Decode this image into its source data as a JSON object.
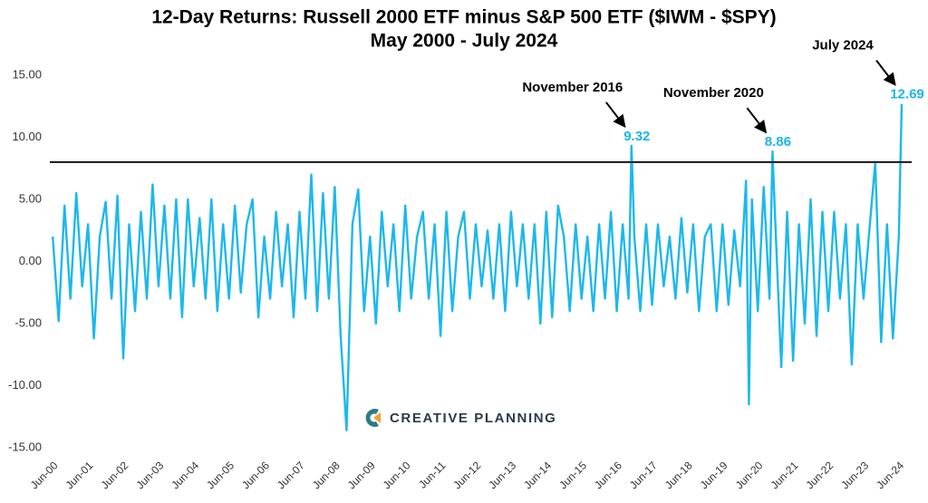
{
  "chart_data": {
    "type": "line",
    "title": "12-Day Returns: Russell 2000 ETF minus S&P 500 ETF ($IWM - $SPY)",
    "subtitle": "May 2000 - July 2024",
    "watermark": "CREATIVE PLANNING",
    "color": "#1cb8ec",
    "reference_line": 8,
    "xlim": [
      "2000-05",
      "2024-07"
    ],
    "ylim": [
      -15,
      15
    ],
    "yticks": [
      {
        "value": 15,
        "label": "15.00"
      },
      {
        "value": 10,
        "label": "10.00"
      },
      {
        "value": 5,
        "label": "5.00"
      },
      {
        "value": 0,
        "label": "0.00"
      },
      {
        "value": -5,
        "label": "-5.00"
      },
      {
        "value": -10,
        "label": "-10.00"
      },
      {
        "value": -15,
        "label": "-15.00"
      }
    ],
    "xticks": [
      {
        "value": "2000-06",
        "label": "Jun-00"
      },
      {
        "value": "2001-06",
        "label": "Jun-01"
      },
      {
        "value": "2002-06",
        "label": "Jun-02"
      },
      {
        "value": "2003-06",
        "label": "Jun-03"
      },
      {
        "value": "2004-06",
        "label": "Jun-04"
      },
      {
        "value": "2005-06",
        "label": "Jun-05"
      },
      {
        "value": "2006-06",
        "label": "Jun-06"
      },
      {
        "value": "2007-06",
        "label": "Jun-07"
      },
      {
        "value": "2008-06",
        "label": "Jun-08"
      },
      {
        "value": "2009-06",
        "label": "Jun-09"
      },
      {
        "value": "2010-06",
        "label": "Jun-10"
      },
      {
        "value": "2011-06",
        "label": "Jun-11"
      },
      {
        "value": "2012-06",
        "label": "Jun-12"
      },
      {
        "value": "2013-06",
        "label": "Jun-13"
      },
      {
        "value": "2014-06",
        "label": "Jun-14"
      },
      {
        "value": "2015-06",
        "label": "Jun-15"
      },
      {
        "value": "2016-06",
        "label": "Jun-16"
      },
      {
        "value": "2017-06",
        "label": "Jun-17"
      },
      {
        "value": "2018-06",
        "label": "Jun-18"
      },
      {
        "value": "2019-06",
        "label": "Jun-19"
      },
      {
        "value": "2020-06",
        "label": "Jun-20"
      },
      {
        "value": "2021-06",
        "label": "Jun-21"
      },
      {
        "value": "2022-06",
        "label": "Jun-22"
      },
      {
        "value": "2023-06",
        "label": "Jun-23"
      },
      {
        "value": "2024-06",
        "label": "Jun-24"
      }
    ],
    "x": [
      "2000-06",
      "2000-08",
      "2000-10",
      "2000-12",
      "2001-02",
      "2001-04",
      "2001-06",
      "2001-08",
      "2001-10",
      "2001-12",
      "2002-02",
      "2002-04",
      "2002-06",
      "2002-08",
      "2002-10",
      "2002-12",
      "2003-02",
      "2003-04",
      "2003-06",
      "2003-08",
      "2003-10",
      "2003-12",
      "2004-02",
      "2004-04",
      "2004-06",
      "2004-08",
      "2004-10",
      "2004-12",
      "2005-02",
      "2005-04",
      "2005-06",
      "2005-08",
      "2005-10",
      "2005-12",
      "2006-02",
      "2006-04",
      "2006-06",
      "2006-08",
      "2006-10",
      "2006-12",
      "2007-02",
      "2007-04",
      "2007-06",
      "2007-08",
      "2007-10",
      "2007-12",
      "2008-02",
      "2008-04",
      "2008-06",
      "2008-08",
      "2008-10",
      "2008-12",
      "2009-02",
      "2009-04",
      "2009-06",
      "2009-08",
      "2009-10",
      "2009-12",
      "2010-02",
      "2010-04",
      "2010-06",
      "2010-08",
      "2010-10",
      "2010-12",
      "2011-02",
      "2011-04",
      "2011-06",
      "2011-08",
      "2011-10",
      "2011-12",
      "2012-02",
      "2012-04",
      "2012-06",
      "2012-08",
      "2012-10",
      "2012-12",
      "2013-02",
      "2013-04",
      "2013-06",
      "2013-08",
      "2013-10",
      "2013-12",
      "2014-02",
      "2014-04",
      "2014-06",
      "2014-08",
      "2014-10",
      "2014-12",
      "2015-02",
      "2015-04",
      "2015-06",
      "2015-08",
      "2015-10",
      "2015-12",
      "2016-02",
      "2016-04",
      "2016-06",
      "2016-08",
      "2016-10",
      "2016-11",
      "2016-12",
      "2017-02",
      "2017-04",
      "2017-06",
      "2017-08",
      "2017-10",
      "2017-12",
      "2018-02",
      "2018-04",
      "2018-06",
      "2018-08",
      "2018-10",
      "2018-12",
      "2019-02",
      "2019-04",
      "2019-06",
      "2019-08",
      "2019-10",
      "2019-12",
      "2020-02",
      "2020-03",
      "2020-04",
      "2020-06",
      "2020-08",
      "2020-10",
      "2020-11",
      "2020-12",
      "2021-02",
      "2021-04",
      "2021-06",
      "2021-08",
      "2021-10",
      "2021-12",
      "2022-02",
      "2022-04",
      "2022-06",
      "2022-08",
      "2022-10",
      "2022-12",
      "2023-02",
      "2023-04",
      "2023-06",
      "2023-08",
      "2023-10",
      "2023-12",
      "2024-02",
      "2024-04",
      "2024-06",
      "2024-07"
    ],
    "values": [
      2,
      -4.8,
      4.5,
      -3,
      5.5,
      -2,
      3,
      -6.2,
      2,
      4.8,
      -3,
      5.3,
      -7.8,
      3,
      -4,
      4,
      -3,
      6.2,
      -2,
      4.5,
      -3,
      5,
      -4.5,
      5,
      -2,
      3.5,
      -3,
      5,
      -4,
      3,
      -3,
      4.5,
      -2.5,
      3,
      5,
      -4.5,
      2,
      -3,
      4,
      -2,
      3,
      -4.5,
      4,
      -3,
      7,
      -4,
      5.5,
      -3,
      6,
      -6,
      -13.6,
      3,
      5.8,
      -4,
      2,
      -5,
      4,
      -2,
      3,
      -4,
      4.5,
      -3,
      2,
      4,
      -3,
      3,
      -6,
      4,
      -4,
      2,
      4,
      -3,
      3,
      -2,
      2.5,
      -3,
      3,
      -4,
      4,
      -2,
      3,
      -3,
      3,
      -5,
      4,
      -4.5,
      4.5,
      2,
      -4,
      3,
      -3,
      2,
      -4,
      3,
      -3,
      4,
      -4,
      3,
      -3,
      9.32,
      2,
      -4,
      3,
      -3.5,
      3,
      -2,
      2,
      -3,
      3.5,
      -2.5,
      3,
      -4,
      2,
      3,
      -4,
      3,
      -3.5,
      2.5,
      -2,
      6.5,
      -11.5,
      5,
      -4,
      6,
      -3,
      8.86,
      3,
      -8.5,
      4,
      -8,
      3,
      -5,
      5,
      -6,
      4,
      -4,
      4,
      -3,
      3,
      -8.3,
      3,
      -3,
      2.5,
      8,
      -6.5,
      3,
      -6.2,
      2,
      12.69
    ],
    "annotations": [
      {
        "text": "November 2016",
        "x": "2016-11",
        "value": 9.32
      },
      {
        "text": "November 2020",
        "x": "2020-11",
        "value": 8.86
      },
      {
        "text": "July 2024",
        "x": "2024-07",
        "value": 12.69
      }
    ]
  }
}
